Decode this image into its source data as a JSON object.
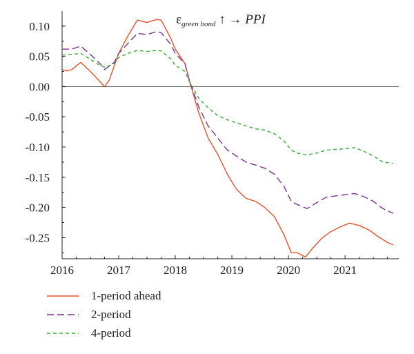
{
  "title": {
    "prefix": "ε",
    "subscript": "green bond",
    "arrow": "↑ →",
    "target": "PPI"
  },
  "chart_data": {
    "type": "line",
    "xlabel": "",
    "ylabel": "",
    "xlim": [
      2016.0,
      2021.95
    ],
    "ylim": [
      -0.285,
      0.125
    ],
    "x_ticks": [
      2016,
      2017,
      2018,
      2019,
      2020,
      2021
    ],
    "x_tick_labels": [
      "2016",
      "2017",
      "2018",
      "2019",
      "2020",
      "2021"
    ],
    "y_ticks": [
      0.1,
      0.05,
      0.0,
      -0.05,
      -0.1,
      -0.15,
      -0.2,
      -0.25
    ],
    "y_tick_labels": [
      "0.10",
      "0.05",
      "0.00",
      "-0.05",
      "-0.10",
      "-0.15",
      "-0.20",
      "-0.25"
    ],
    "zero_line": true,
    "grid": false,
    "legend_position": "bottom-left",
    "series": [
      {
        "name": "1-period ahead",
        "color": "#e8502a",
        "dash": "solid",
        "points": [
          [
            2016.0,
            0.028
          ],
          [
            2016.08,
            0.026
          ],
          [
            2016.17,
            0.028
          ],
          [
            2016.33,
            0.04
          ],
          [
            2016.5,
            0.025
          ],
          [
            2016.67,
            0.008
          ],
          [
            2016.75,
            0.0
          ],
          [
            2016.83,
            0.01
          ],
          [
            2017.0,
            0.055
          ],
          [
            2017.17,
            0.085
          ],
          [
            2017.33,
            0.11
          ],
          [
            2017.5,
            0.106
          ],
          [
            2017.67,
            0.111
          ],
          [
            2017.75,
            0.11
          ],
          [
            2017.92,
            0.08
          ],
          [
            2018.0,
            0.062
          ],
          [
            2018.17,
            0.038
          ],
          [
            2018.25,
            0.01
          ],
          [
            2018.42,
            -0.045
          ],
          [
            2018.58,
            -0.085
          ],
          [
            2018.75,
            -0.112
          ],
          [
            2018.92,
            -0.145
          ],
          [
            2019.08,
            -0.17
          ],
          [
            2019.25,
            -0.185
          ],
          [
            2019.42,
            -0.19
          ],
          [
            2019.58,
            -0.2
          ],
          [
            2019.75,
            -0.215
          ],
          [
            2019.92,
            -0.245
          ],
          [
            2020.05,
            -0.275
          ],
          [
            2020.15,
            -0.275
          ],
          [
            2020.3,
            -0.282
          ],
          [
            2020.45,
            -0.265
          ],
          [
            2020.6,
            -0.25
          ],
          [
            2020.75,
            -0.24
          ],
          [
            2020.92,
            -0.232
          ],
          [
            2021.08,
            -0.226
          ],
          [
            2021.25,
            -0.23
          ],
          [
            2021.42,
            -0.237
          ],
          [
            2021.58,
            -0.248
          ],
          [
            2021.75,
            -0.258
          ],
          [
            2021.85,
            -0.262
          ]
        ]
      },
      {
        "name": "2-period",
        "color": "#7b3294",
        "dash": "long",
        "points": [
          [
            2016.0,
            0.062
          ],
          [
            2016.17,
            0.062
          ],
          [
            2016.33,
            0.067
          ],
          [
            2016.5,
            0.053
          ],
          [
            2016.67,
            0.038
          ],
          [
            2016.75,
            0.028
          ],
          [
            2016.92,
            0.04
          ],
          [
            2017.0,
            0.055
          ],
          [
            2017.17,
            0.072
          ],
          [
            2017.33,
            0.088
          ],
          [
            2017.5,
            0.086
          ],
          [
            2017.67,
            0.091
          ],
          [
            2017.75,
            0.089
          ],
          [
            2017.92,
            0.07
          ],
          [
            2018.0,
            0.055
          ],
          [
            2018.17,
            0.038
          ],
          [
            2018.25,
            0.01
          ],
          [
            2018.42,
            -0.035
          ],
          [
            2018.58,
            -0.065
          ],
          [
            2018.75,
            -0.085
          ],
          [
            2018.92,
            -0.105
          ],
          [
            2019.08,
            -0.115
          ],
          [
            2019.25,
            -0.125
          ],
          [
            2019.42,
            -0.13
          ],
          [
            2019.58,
            -0.135
          ],
          [
            2019.75,
            -0.145
          ],
          [
            2019.92,
            -0.165
          ],
          [
            2020.05,
            -0.19
          ],
          [
            2020.15,
            -0.195
          ],
          [
            2020.33,
            -0.202
          ],
          [
            2020.5,
            -0.192
          ],
          [
            2020.67,
            -0.183
          ],
          [
            2020.83,
            -0.181
          ],
          [
            2021.0,
            -0.179
          ],
          [
            2021.17,
            -0.177
          ],
          [
            2021.33,
            -0.182
          ],
          [
            2021.5,
            -0.19
          ],
          [
            2021.67,
            -0.202
          ],
          [
            2021.85,
            -0.21
          ]
        ]
      },
      {
        "name": "4-period",
        "color": "#3aaa35",
        "dash": "short",
        "points": [
          [
            2016.0,
            0.052
          ],
          [
            2016.17,
            0.053
          ],
          [
            2016.33,
            0.055
          ],
          [
            2016.5,
            0.045
          ],
          [
            2016.67,
            0.035
          ],
          [
            2016.75,
            0.032
          ],
          [
            2016.92,
            0.038
          ],
          [
            2017.0,
            0.048
          ],
          [
            2017.17,
            0.055
          ],
          [
            2017.33,
            0.06
          ],
          [
            2017.5,
            0.058
          ],
          [
            2017.67,
            0.06
          ],
          [
            2017.75,
            0.059
          ],
          [
            2017.92,
            0.046
          ],
          [
            2018.0,
            0.035
          ],
          [
            2018.17,
            0.025
          ],
          [
            2018.25,
            0.008
          ],
          [
            2018.42,
            -0.02
          ],
          [
            2018.58,
            -0.035
          ],
          [
            2018.75,
            -0.048
          ],
          [
            2018.92,
            -0.055
          ],
          [
            2019.08,
            -0.06
          ],
          [
            2019.25,
            -0.065
          ],
          [
            2019.42,
            -0.07
          ],
          [
            2019.58,
            -0.072
          ],
          [
            2019.75,
            -0.078
          ],
          [
            2019.92,
            -0.09
          ],
          [
            2020.05,
            -0.105
          ],
          [
            2020.15,
            -0.11
          ],
          [
            2020.33,
            -0.113
          ],
          [
            2020.5,
            -0.11
          ],
          [
            2020.67,
            -0.105
          ],
          [
            2020.83,
            -0.104
          ],
          [
            2021.0,
            -0.103
          ],
          [
            2021.17,
            -0.101
          ],
          [
            2021.33,
            -0.107
          ],
          [
            2021.5,
            -0.115
          ],
          [
            2021.67,
            -0.125
          ],
          [
            2021.85,
            -0.127
          ]
        ]
      }
    ]
  }
}
